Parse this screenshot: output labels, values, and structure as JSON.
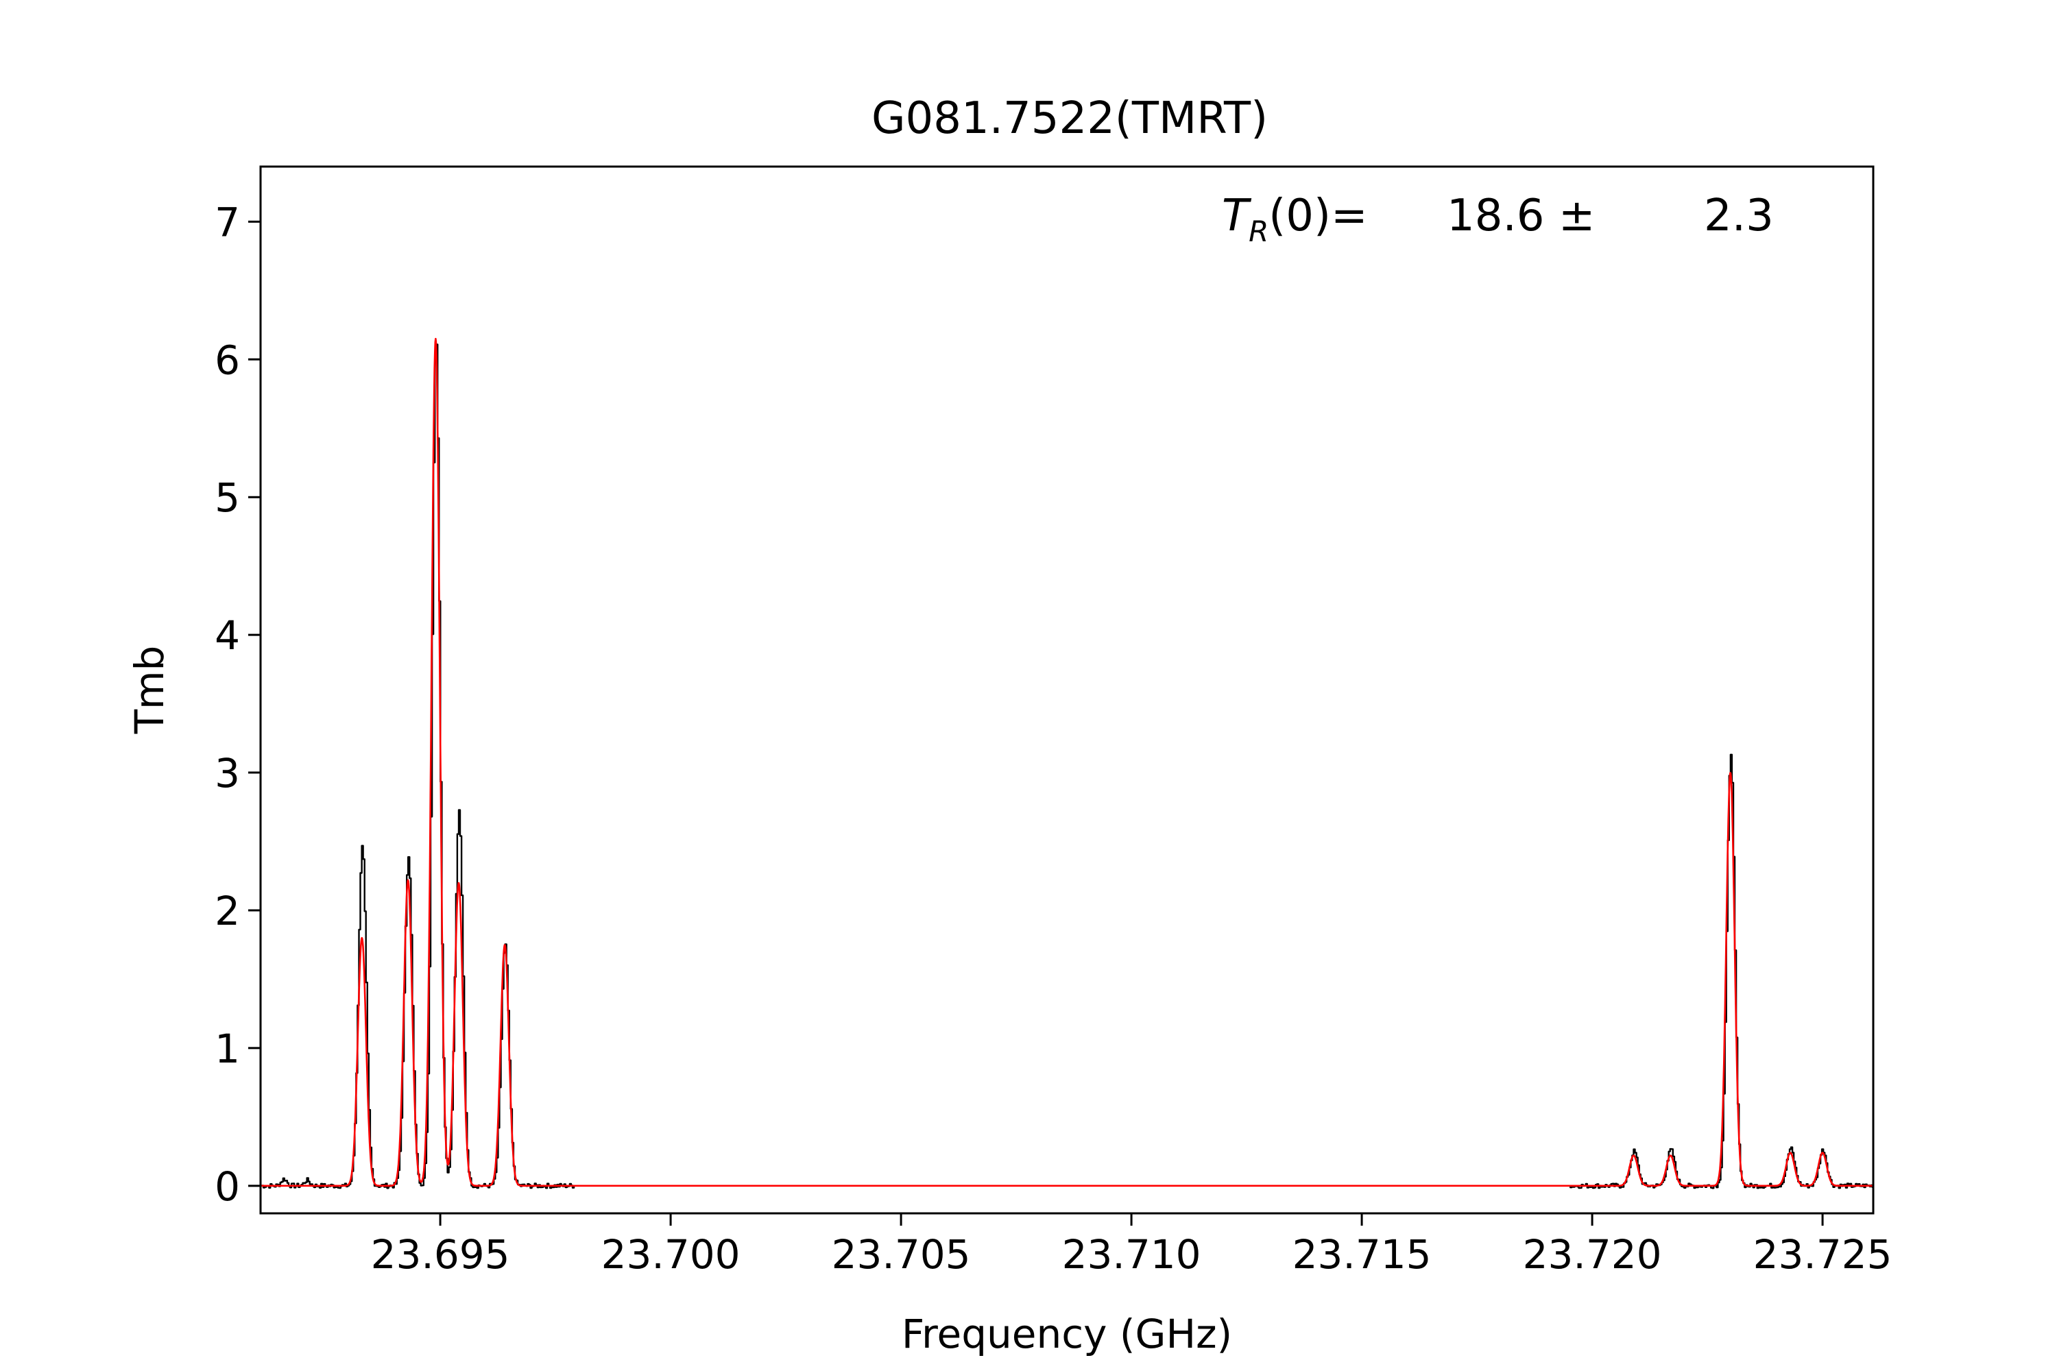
{
  "chart_data": {
    "type": "line",
    "title": "G081.7522(TMRT)",
    "xlabel": "Frequency (GHz)",
    "ylabel": "Tmb",
    "xlim": [
      23.6911,
      23.7261
    ],
    "ylim": [
      -0.2,
      7.4
    ],
    "xticks": [
      23.695,
      23.7,
      23.705,
      23.71,
      23.715,
      23.72,
      23.725
    ],
    "xtick_labels": [
      "23.695",
      "23.700",
      "23.705",
      "23.710",
      "23.715",
      "23.720",
      "23.725"
    ],
    "yticks": [
      0,
      1,
      2,
      3,
      4,
      5,
      6,
      7
    ],
    "ytick_labels": [
      "0",
      "1",
      "2",
      "3",
      "4",
      "5",
      "6",
      "7"
    ],
    "grid": false,
    "annotation": {
      "symbol": "T",
      "subscript": "R",
      "suffix": "(0)=",
      "value": "18.6 ±",
      "error": "2.3"
    },
    "series": [
      {
        "color": "#000000",
        "style": "steps",
        "peaks": [
          {
            "x": 23.6916,
            "amp": 0.05,
            "width": 6e-05
          },
          {
            "x": 23.6921,
            "amp": 0.04,
            "width": 6e-05
          },
          {
            "x": 23.6933,
            "amp": 2.48,
            "width": 8.5e-05
          },
          {
            "x": 23.6943,
            "amp": 2.4,
            "width": 8.5e-05
          },
          {
            "x": 23.6949,
            "amp": 6.18,
            "width": 8.5e-05
          },
          {
            "x": 23.6954,
            "amp": 2.72,
            "width": 8.5e-05
          },
          {
            "x": 23.6964,
            "amp": 1.75,
            "width": 8.5e-05
          },
          {
            "x": 23.7209,
            "amp": 0.25,
            "width": 8.5e-05
          },
          {
            "x": 23.7217,
            "amp": 0.26,
            "width": 8.5e-05
          },
          {
            "x": 23.723,
            "amp": 3.15,
            "width": 8.5e-05
          },
          {
            "x": 23.7243,
            "amp": 0.27,
            "width": 8.5e-05
          },
          {
            "x": 23.725,
            "amp": 0.26,
            "width": 8.5e-05
          }
        ]
      },
      {
        "color": "#ff0000",
        "style": "smooth",
        "peaks": [
          {
            "x": 23.6933,
            "amp": 1.8,
            "width": 9e-05
          },
          {
            "x": 23.6943,
            "amp": 2.22,
            "width": 9e-05
          },
          {
            "x": 23.6949,
            "amp": 6.15,
            "width": 9e-05
          },
          {
            "x": 23.6954,
            "amp": 2.2,
            "width": 9e-05
          },
          {
            "x": 23.6964,
            "amp": 1.75,
            "width": 9e-05
          },
          {
            "x": 23.7209,
            "amp": 0.22,
            "width": 9e-05
          },
          {
            "x": 23.7217,
            "amp": 0.22,
            "width": 9e-05
          },
          {
            "x": 23.723,
            "amp": 3.0,
            "width": 9e-05
          },
          {
            "x": 23.7243,
            "amp": 0.24,
            "width": 9e-05
          },
          {
            "x": 23.725,
            "amp": 0.24,
            "width": 9e-05
          }
        ]
      }
    ]
  }
}
